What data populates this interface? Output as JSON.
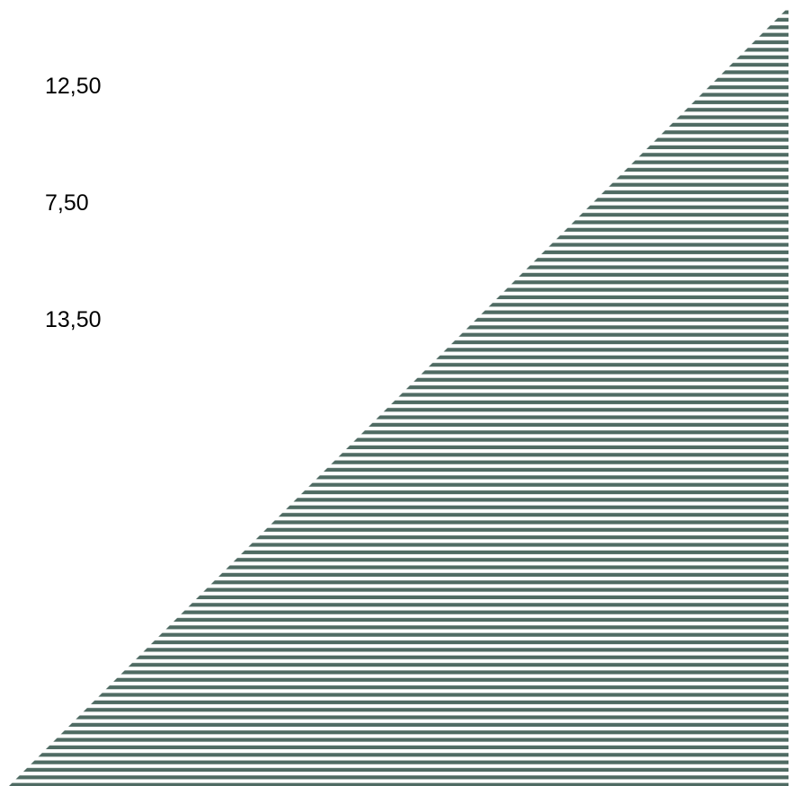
{
  "values": [
    "12,50",
    "7,50",
    "13,50"
  ],
  "colors": {
    "background": "#ffffff",
    "stripe": "#4f6b63",
    "text": "#000000"
  }
}
